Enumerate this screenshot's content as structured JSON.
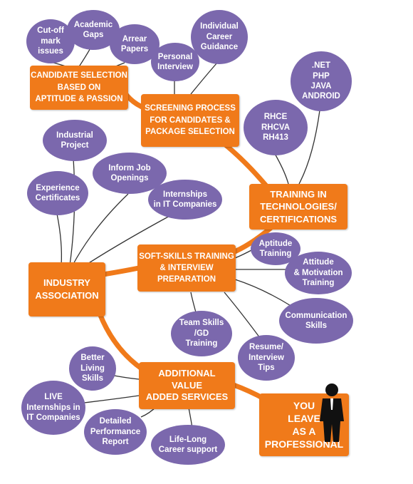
{
  "colors": {
    "orange": "#f07a1a",
    "purple": "#7b68ad",
    "line": "#333333"
  },
  "nodes": {
    "candidate_selection": "CANDIDATE SELECTION\nBASED ON\nAPTITUDE & PASSION",
    "screening": "SCREENING PROCESS\nFOR CANDIDATES &\nPACKAGE SELECTION",
    "training": "TRAINING IN\nTECHNOLOGIES/\nCERTIFICATIONS",
    "soft_skills": "SOFT-SKILLS TRAINING\n& INTERVIEW\nPREPARATION",
    "industry": "INDUSTRY\nASSOCIATION",
    "additional": "ADDITIONAL\nVALUE\nADDED SERVICES",
    "professional": "YOU\nLEAVE\nAS A\nPROFESSIONAL"
  },
  "bubbles": {
    "cutoff": "Cut-off\nmark\nissues",
    "academic": "Academic\nGaps",
    "arrear": "Arrear\nPapers",
    "personal": "Personal\nInterview",
    "career": "Individual\nCareer\nGuidance",
    "net": ".NET\nPHP\nJAVA\nANDROID",
    "rhce": "RHCE\nRHCVA\nRH413",
    "industrial": "Industrial\nProject",
    "inform": "Inform Job\nOpenings",
    "experience": "Experience\nCertificates",
    "internships_it": "Internships\nin IT Companies",
    "aptitude": "Aptitude\nTraining",
    "attitude": "Attitude\n& Motivation\nTraining",
    "communication": "Communication\nSkills",
    "team": "Team Skills\n/GD\nTraining",
    "resume": "Resume/\nInterview\nTips",
    "better": "Better\nLiving\nSkills",
    "live": "LIVE\nInternships in\nIT Companies",
    "detailed": "Detailed\nPerformance\nReport",
    "lifelong": "Life-Long\nCareer support"
  }
}
